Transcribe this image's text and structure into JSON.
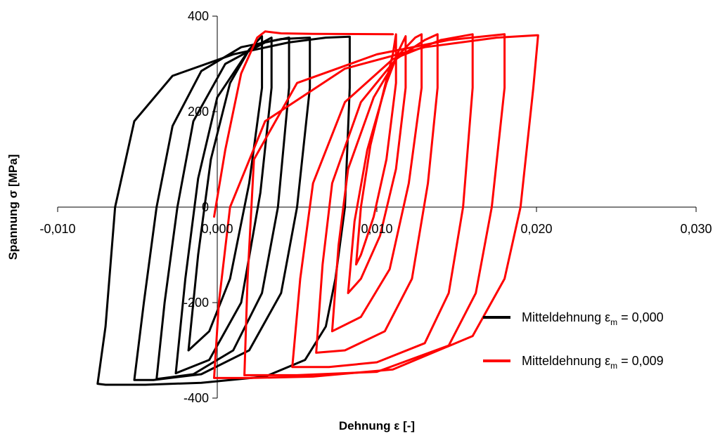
{
  "chart_data": {
    "type": "line",
    "title": "",
    "xlabel": {
      "text": "Dehnung ",
      "symbol": "ε",
      "unit": " [-]"
    },
    "ylabel": {
      "text": "Spannung ",
      "symbol": "σ",
      "unit": " [MPa]"
    },
    "xlim": [
      -0.01,
      0.03
    ],
    "ylim": [
      -400,
      400
    ],
    "xticks": [
      -0.01,
      0.0,
      0.01,
      0.02,
      0.03
    ],
    "xtick_labels": [
      "-0,010",
      "0,000",
      "0,010",
      "0,020",
      "0,030"
    ],
    "yticks": [
      -400,
      -200,
      0,
      200,
      400
    ],
    "ytick_labels": [
      "-400",
      "-200",
      "0",
      "200",
      "400"
    ],
    "grid": false,
    "legend_position": "bottom-right",
    "series": [
      {
        "name_prefix": "Mitteldehnung ",
        "name_symbol": "ε",
        "name_sub": "m",
        "name_suffix": " = 0,000",
        "color": "#000000",
        "mean_strain": 0.0,
        "loops": [
          {
            "x": [
              -0.0075,
              -0.007,
              -0.0064,
              -0.0052,
              -0.0028,
              0.001,
              0.0045,
              0.0068,
              0.0083,
              0.0083,
              0.008,
              0.0074,
              0.0068,
              0.0055,
              0.003,
              -0.001,
              -0.0045,
              -0.007,
              -0.0075
            ],
            "y": [
              -370,
              -250,
              0,
              180,
              275,
              320,
              345,
              355,
              357,
              250,
              0,
              -150,
              -250,
              -320,
              -355,
              -368,
              -372,
              -372,
              -370
            ]
          },
          {
            "x": [
              -0.0052,
              -0.0046,
              -0.0038,
              -0.0028,
              -0.001,
              0.0015,
              0.004,
              0.0058,
              0.0058,
              0.005,
              0.004,
              0.002,
              -0.001,
              -0.004,
              -0.0052
            ],
            "y": [
              -362,
              -200,
              0,
              170,
              285,
              335,
              352,
              355,
              250,
              0,
              -180,
              -300,
              -350,
              -362,
              -362
            ]
          },
          {
            "x": [
              -0.0038,
              -0.0033,
              -0.0025,
              -0.0015,
              0.0005,
              0.003,
              0.0045,
              0.0045,
              0.0038,
              0.0028,
              0.001,
              -0.0015,
              -0.0038
            ],
            "y": [
              -360,
              -200,
              0,
              180,
              300,
              345,
              355,
              250,
              0,
              -180,
              -300,
              -350,
              -360
            ]
          },
          {
            "x": [
              -0.0026,
              -0.002,
              -0.0012,
              0.0,
              0.002,
              0.0034,
              0.0034,
              0.0027,
              0.0015,
              -0.0005,
              -0.0026
            ],
            "y": [
              -348,
              -150,
              60,
              230,
              330,
              355,
              250,
              30,
              -200,
              -320,
              -348
            ]
          },
          {
            "x": [
              -0.0018,
              -0.0012,
              -0.0004,
              0.0008,
              0.002,
              0.0028,
              0.0028,
              0.002,
              0.0008,
              -0.0005,
              -0.0018
            ],
            "y": [
              -300,
              -100,
              100,
              260,
              330,
              358,
              250,
              50,
              -150,
              -260,
              -300
            ]
          }
        ]
      },
      {
        "name_prefix": "Mitteldehnung ",
        "name_symbol": "ε",
        "name_sub": "m",
        "name_suffix": " = 0,009",
        "color": "#ff0000",
        "mean_strain": 0.009,
        "loops": [
          {
            "x": [
              -0.0002,
              0.0001,
              0.0008,
              0.003,
              0.008,
              0.013,
              0.0175,
              0.02,
              0.0201,
              0.0198,
              0.019,
              0.018,
              0.016,
              0.011,
              0.006,
              0.002,
              0.0,
              -0.0002
            ],
            "y": [
              -358,
              -200,
              0,
              180,
              290,
              335,
              355,
              360,
              360,
              250,
              0,
              -150,
              -270,
              -340,
              -355,
              -358,
              -358,
              -358
            ]
          },
          {
            "x": [
              0.0017,
              0.0019,
              0.0023,
              0.005,
              0.01,
              0.0145,
              0.018,
              0.018,
              0.0172,
              0.0162,
              0.0145,
              0.01,
              0.005,
              0.0017
            ],
            "y": [
              -352,
              -150,
              100,
              260,
              320,
              350,
              362,
              250,
              0,
              -180,
              -290,
              -345,
              -352,
              -352
            ]
          },
          {
            "x": [
              0.0047,
              0.0052,
              0.006,
              0.008,
              0.011,
              0.014,
              0.016,
              0.016,
              0.0154,
              0.0145,
              0.013,
              0.01,
              0.007,
              0.0047
            ],
            "y": [
              -335,
              -150,
              50,
              220,
              310,
              350,
              362,
              250,
              0,
              -180,
              -285,
              -325,
              -335,
              -335
            ]
          },
          {
            "x": [
              0.0062,
              0.0066,
              0.0072,
              0.009,
              0.0112,
              0.013,
              0.0138,
              0.0138,
              0.0132,
              0.0122,
              0.0105,
              0.008,
              0.0062
            ],
            "y": [
              -305,
              -120,
              50,
              220,
              310,
              350,
              362,
              250,
              50,
              -150,
              -260,
              -300,
              -305
            ]
          },
          {
            "x": [
              0.0072,
              0.0076,
              0.0082,
              0.0098,
              0.0114,
              0.0124,
              0.0128,
              0.0128,
              0.012,
              0.0108,
              0.009,
              0.0072
            ],
            "y": [
              -260,
              -80,
              80,
              230,
              320,
              355,
              362,
              250,
              50,
              -130,
              -230,
              -260
            ]
          },
          {
            "x": [
              0.0082,
              0.0086,
              0.0094,
              0.0106,
              0.0114,
              0.0118,
              0.0118,
              0.0112,
              0.0102,
              0.009,
              0.0082
            ],
            "y": [
              -180,
              -30,
              120,
              260,
              330,
              358,
              250,
              80,
              -60,
              -150,
              -180
            ]
          },
          {
            "x": [
              0.0087,
              0.009,
              0.0096,
              0.0104,
              0.011,
              0.0112,
              0.0112,
              0.0106,
              0.0098,
              0.009,
              0.0087
            ],
            "y": [
              -120,
              0,
              130,
              240,
              320,
              362,
              260,
              100,
              -20,
              -100,
              -120
            ]
          },
          {
            "x": [
              -0.0002,
              0.0005,
              0.0015,
              0.0025,
              0.003,
              0.004,
              0.006,
              0.011
            ],
            "y": [
              -20,
              120,
              280,
              355,
              368,
              364,
              363,
              362
            ]
          }
        ]
      }
    ]
  }
}
